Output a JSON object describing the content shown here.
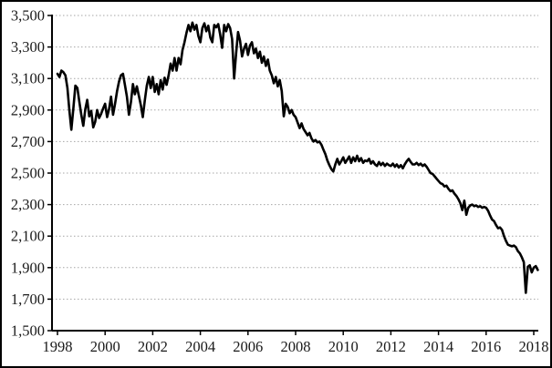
{
  "chart_data": {
    "type": "line",
    "title": "",
    "xlabel": "",
    "ylabel": "",
    "legend": "none",
    "background": "#ffffff",
    "frame_border_color": "#000000",
    "grid": {
      "horizontal": true,
      "vertical": false,
      "style": "dotted",
      "color": "#a6a6a6"
    },
    "x_axis": {
      "start_year": 1998,
      "end_year": 2018,
      "points_per_year": 12,
      "tick_labels": [
        "1998",
        "2000",
        "2002",
        "2004",
        "2006",
        "2008",
        "2010",
        "2012",
        "2014",
        "2016",
        "2018"
      ],
      "tick_years": [
        1998,
        2000,
        2002,
        2004,
        2006,
        2008,
        2010,
        2012,
        2014,
        2016,
        2018
      ],
      "axis_color": "#000000"
    },
    "y_axis": {
      "min": 1500,
      "max": 3500,
      "tick_step": 200,
      "tick_values": [
        1500,
        1700,
        1900,
        2100,
        2300,
        2500,
        2700,
        2900,
        3100,
        3300,
        3500
      ],
      "tick_labels": [
        "1,500",
        "1,700",
        "1,900",
        "2,100",
        "2,300",
        "2,500",
        "2,700",
        "2,900",
        "3,100",
        "3,300",
        "3,500"
      ],
      "axis_color": "#000000"
    },
    "series": [
      {
        "name": "monthly-value",
        "color": "#000000",
        "stroke_width": 2.6,
        "start": "1998-01",
        "frequency": "monthly",
        "values": [
          3130,
          3110,
          3150,
          3140,
          3120,
          3040,
          2900,
          2775,
          2910,
          3055,
          3040,
          2955,
          2870,
          2800,
          2905,
          2965,
          2860,
          2895,
          2790,
          2825,
          2900,
          2850,
          2875,
          2910,
          2940,
          2855,
          2905,
          2985,
          2870,
          2940,
          3020,
          3080,
          3120,
          3130,
          3060,
          2985,
          2870,
          2950,
          3065,
          3000,
          3050,
          2990,
          2930,
          2855,
          2960,
          3055,
          3110,
          3040,
          3110,
          3015,
          3065,
          3000,
          3090,
          3030,
          3105,
          3060,
          3120,
          3195,
          3150,
          3230,
          3150,
          3230,
          3190,
          3280,
          3330,
          3390,
          3440,
          3400,
          3455,
          3410,
          3440,
          3370,
          3330,
          3420,
          3450,
          3400,
          3435,
          3360,
          3330,
          3440,
          3425,
          3445,
          3380,
          3295,
          3440,
          3400,
          3445,
          3420,
          3350,
          3100,
          3260,
          3395,
          3340,
          3240,
          3290,
          3320,
          3250,
          3310,
          3330,
          3260,
          3290,
          3230,
          3270,
          3200,
          3240,
          3180,
          3220,
          3150,
          3120,
          3070,
          3110,
          3050,
          3090,
          3020,
          2860,
          2940,
          2920,
          2880,
          2900,
          2870,
          2855,
          2820,
          2785,
          2815,
          2780,
          2760,
          2740,
          2755,
          2720,
          2700,
          2710,
          2695,
          2700,
          2680,
          2650,
          2620,
          2580,
          2550,
          2525,
          2510,
          2555,
          2590,
          2555,
          2575,
          2600,
          2565,
          2585,
          2605,
          2565,
          2600,
          2575,
          2610,
          2575,
          2595,
          2565,
          2580,
          2575,
          2590,
          2560,
          2575,
          2555,
          2545,
          2570,
          2550,
          2565,
          2545,
          2560,
          2550,
          2545,
          2560,
          2540,
          2555,
          2535,
          2550,
          2530,
          2555,
          2575,
          2590,
          2570,
          2555,
          2555,
          2565,
          2550,
          2560,
          2545,
          2555,
          2540,
          2520,
          2500,
          2495,
          2480,
          2465,
          2450,
          2435,
          2430,
          2415,
          2420,
          2400,
          2385,
          2390,
          2370,
          2355,
          2335,
          2310,
          2265,
          2325,
          2235,
          2280,
          2295,
          2300,
          2290,
          2295,
          2285,
          2290,
          2280,
          2285,
          2280,
          2260,
          2230,
          2205,
          2195,
          2170,
          2150,
          2155,
          2140,
          2100,
          2070,
          2045,
          2040,
          2035,
          2040,
          2030,
          2005,
          1990,
          1965,
          1935,
          1740,
          1905,
          1915,
          1870,
          1900,
          1910,
          1885
        ]
      }
    ]
  }
}
